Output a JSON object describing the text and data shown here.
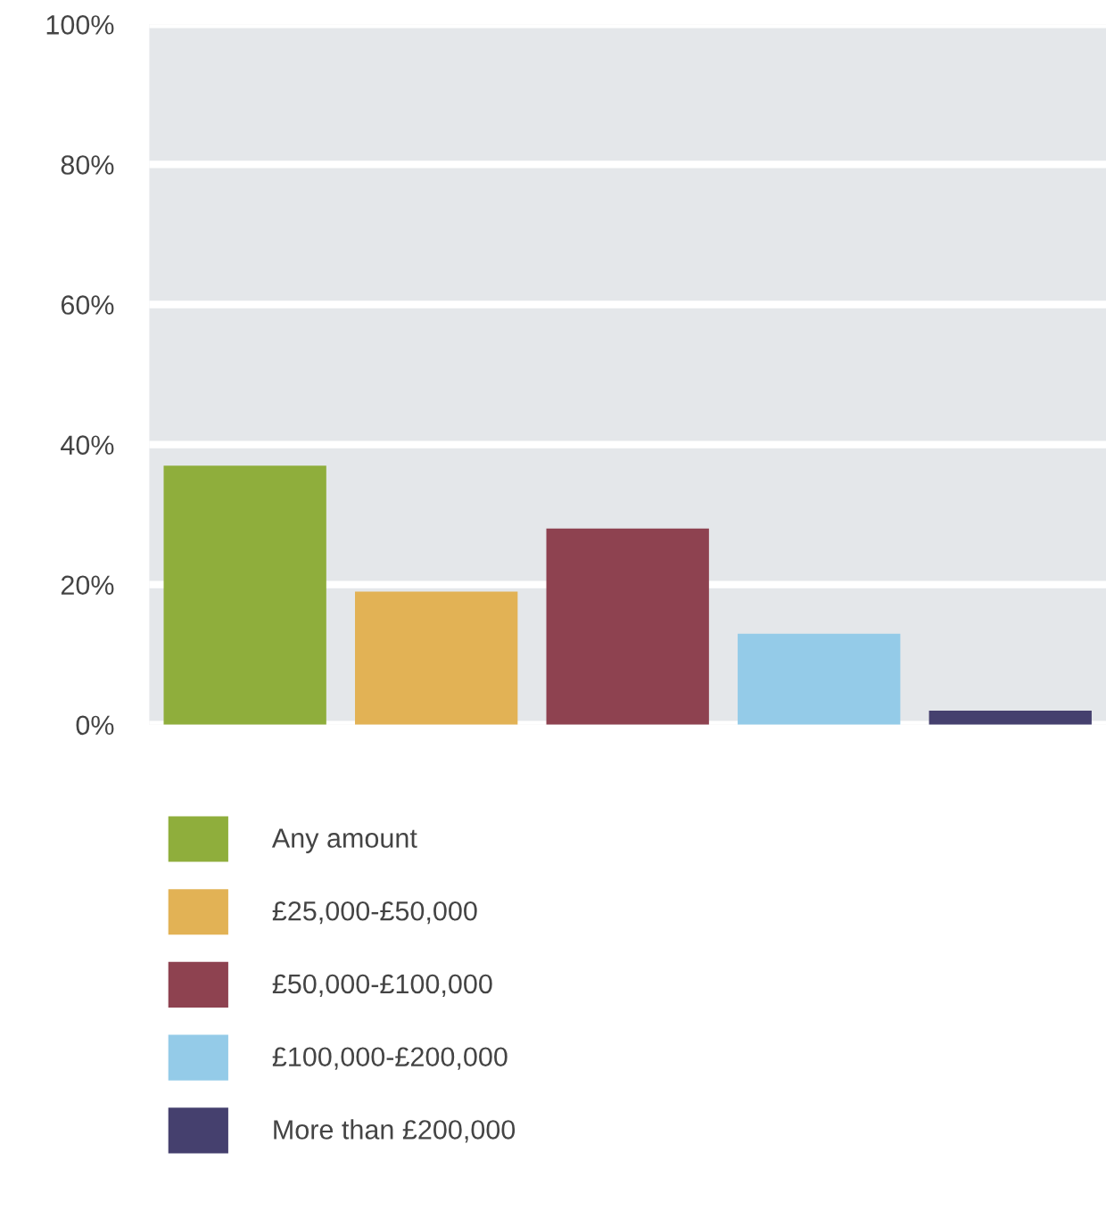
{
  "chart_data": {
    "type": "bar",
    "categories": [
      null,
      null,
      null,
      null,
      null
    ],
    "series": [
      {
        "name": "Any amount",
        "color": "#8fae3c",
        "values": [
          37,
          null,
          null,
          null,
          null
        ]
      },
      {
        "name": "£25,000-£50,000",
        "color": "#e2b255",
        "values": [
          null,
          19,
          null,
          null,
          null
        ]
      },
      {
        "name": "£50,000-£100,000",
        "color": "#8e4250",
        "values": [
          null,
          null,
          28,
          null,
          null
        ]
      },
      {
        "name": "£100,000-£200,000",
        "color": "#94cbe8",
        "values": [
          null,
          null,
          null,
          13,
          null
        ]
      },
      {
        "name": "More than £200,000",
        "color": "#45406e",
        "values": [
          null,
          null,
          null,
          null,
          2
        ]
      }
    ],
    "ylim": [
      0,
      100
    ],
    "yticks": [
      {
        "value": 0,
        "label": "0%"
      },
      {
        "value": 20,
        "label": "20%"
      },
      {
        "value": 40,
        "label": "40%"
      },
      {
        "value": 60,
        "label": "60%"
      },
      {
        "value": 80,
        "label": "80%"
      },
      {
        "value": 100,
        "label": "100%"
      }
    ],
    "grid": "y",
    "legend": "bottom"
  }
}
